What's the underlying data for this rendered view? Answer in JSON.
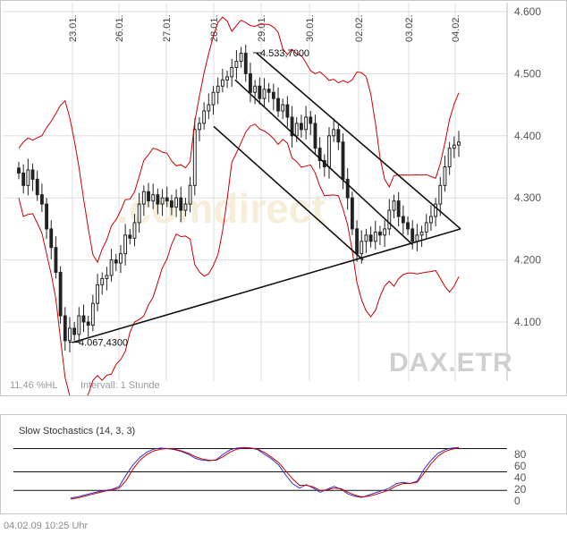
{
  "chart_data": [
    {
      "type": "candlestick",
      "instrument": "DAX.ETR",
      "interval_label": "Intervall: 1 Stunde",
      "volatility_label": "11,46 %HL",
      "x_ticks": [
        "23.01.",
        "26.01.",
        "27.01.",
        "28.01.",
        "29.01.",
        "30.01.",
        "02.02.",
        "03.02.",
        "04.02."
      ],
      "y_ticks": [
        "4.600",
        "4.500",
        "4.400",
        "4.300",
        "4.200",
        "4.100"
      ],
      "y_tick_values": [
        4600,
        4500,
        4400,
        4300,
        4200,
        4100
      ],
      "ylim": [
        3970,
        4615
      ],
      "annotations": [
        {
          "label": "4.533,7000",
          "value": 4533.7,
          "marks": "high"
        },
        {
          "label": "4.067,4300",
          "value": 4067.43,
          "marks": "low"
        }
      ],
      "grid": true,
      "bollinger_bands": true,
      "trendlines": true,
      "colors": {
        "candles": "#222222",
        "bands": "#cc0000",
        "grid": "#dddddd",
        "trendline": "#111111"
      }
    },
    {
      "type": "line",
      "title": "Slow Stochastics (14, 3, 3)",
      "y_ticks": [
        "80",
        "60",
        "40",
        "20",
        "0"
      ],
      "y_tick_values": [
        80,
        60,
        40,
        20,
        0
      ],
      "ylim": [
        0,
        100
      ],
      "reference_lines": [
        90,
        50,
        18
      ],
      "series": [
        {
          "color": "#3333cc",
          "values": [
            5,
            7,
            10,
            13,
            16,
            18,
            20,
            25,
            45,
            62,
            75,
            84,
            89,
            91,
            90,
            88,
            85,
            80,
            73,
            70,
            69,
            71,
            80,
            88,
            91,
            92,
            91,
            88,
            80,
            72,
            62,
            45,
            30,
            22,
            28,
            22,
            15,
            20,
            25,
            20,
            12,
            8,
            6,
            10,
            14,
            18,
            22,
            30,
            32,
            30,
            34,
            55,
            70,
            82,
            88,
            91,
            92
          ]
        },
        {
          "color": "#cc0000",
          "values": [
            3,
            5,
            8,
            11,
            14,
            17,
            19,
            22,
            35,
            55,
            70,
            80,
            86,
            89,
            90,
            89,
            86,
            82,
            76,
            72,
            70,
            70,
            76,
            84,
            89,
            91,
            91,
            89,
            83,
            75,
            66,
            52,
            38,
            27,
            27,
            24,
            18,
            19,
            22,
            21,
            15,
            10,
            7,
            8,
            11,
            15,
            19,
            26,
            30,
            30,
            32,
            48,
            64,
            77,
            85,
            89,
            91
          ]
        }
      ]
    }
  ],
  "watermark": "DAX.ETR",
  "footer": {
    "timestamp": "04.02.09   10:25 Uhr"
  }
}
